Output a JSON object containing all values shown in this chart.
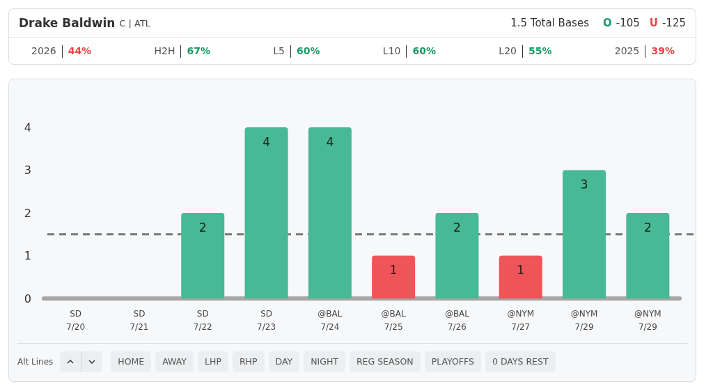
{
  "chart_data": {
    "type": "bar",
    "title": "Drake Baldwin",
    "subtitle": "C | ATL",
    "categories": [
      "SD\n7/20",
      "SD\n7/21",
      "SD\n7/22",
      "SD\n7/23",
      "@BAL\n7/24",
      "@BAL\n7/25",
      "@BAL\n7/26",
      "@NYM\n7/27",
      "@NYM\n7/29",
      "@NYM\n7/29"
    ],
    "values": [
      0,
      0,
      2,
      4,
      4,
      1,
      2,
      1,
      3,
      2
    ],
    "colors": [
      "#a6a6a6",
      "#a6a6a6",
      "#47b994",
      "#47b994",
      "#47b994",
      "#ef5458",
      "#47b994",
      "#ef5458",
      "#47b994",
      "#47b994"
    ],
    "value_labels": [
      null,
      null,
      "2",
      "4",
      "4",
      "1",
      "2",
      "1",
      "3",
      "2"
    ],
    "ylim": [
      0,
      4
    ],
    "yticks": [
      0,
      1,
      2,
      3,
      4
    ],
    "grid": false,
    "ref_lines": [
      {
        "axis": "y",
        "value": 1.5,
        "color": "#777777",
        "line_style": "dashed"
      }
    ],
    "annotations": [
      "1.5 Total Bases",
      "O",
      "-105",
      "U",
      "-125",
      "2026",
      "44%",
      "H2H",
      "67%",
      "L5",
      "60%",
      "L10",
      "60%",
      "L20",
      "55%",
      "2025",
      "39%",
      "Alt Lines",
      "HOME",
      "AWAY",
      "LHP",
      "RHP",
      "DAY",
      "NIGHT",
      "REG SEASON",
      "PLAYOFFS",
      "0 DAYS REST"
    ]
  }
}
